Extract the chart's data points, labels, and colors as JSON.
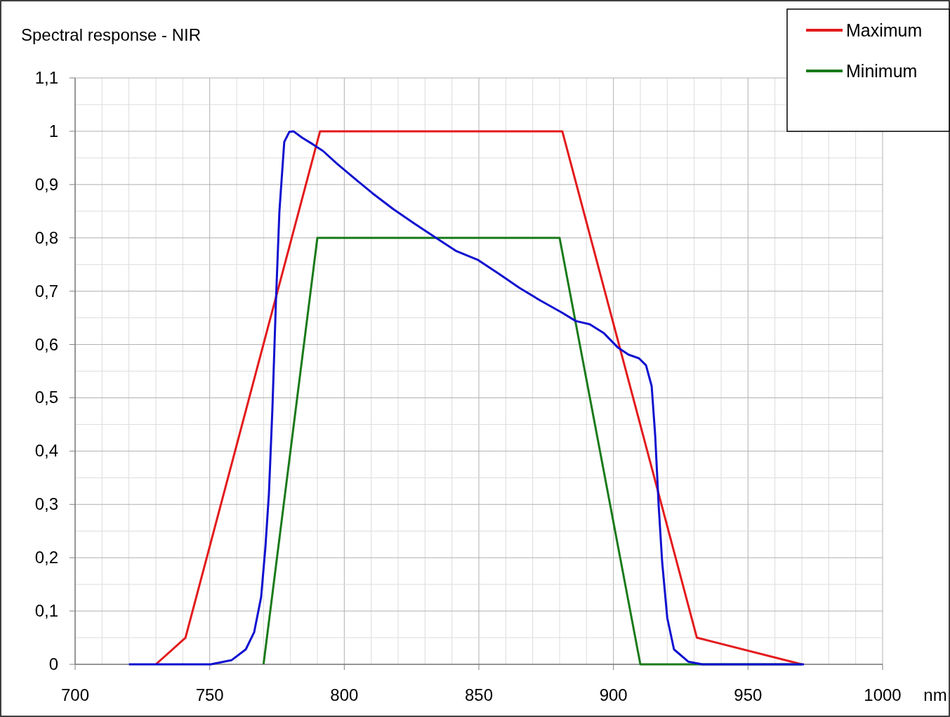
{
  "chart_data": {
    "type": "line",
    "title": "Spectral response - NIR",
    "xlabel": "nm",
    "xlim": [
      700,
      1000
    ],
    "ylim": [
      0,
      1.1
    ],
    "xticks": [
      700,
      {
        "value": 710,
        "label": null
      },
      {
        "value": 720,
        "label": null
      },
      {
        "value": 730,
        "label": null
      },
      {
        "value": 740,
        "label": null
      },
      750,
      {
        "value": 760,
        "label": null
      },
      {
        "value": 770,
        "label": null
      },
      {
        "value": 780,
        "label": null
      },
      {
        "value": 790,
        "label": null
      },
      800,
      {
        "value": 810,
        "label": null
      },
      {
        "value": 820,
        "label": null
      },
      {
        "value": 830,
        "label": null
      },
      {
        "value": 840,
        "label": null
      },
      850,
      {
        "value": 860,
        "label": null
      },
      {
        "value": 870,
        "label": null
      },
      {
        "value": 880,
        "label": null
      },
      {
        "value": 890,
        "label": null
      },
      900,
      {
        "value": 910,
        "label": null
      },
      {
        "value": 920,
        "label": null
      },
      {
        "value": 930,
        "label": null
      },
      {
        "value": 940,
        "label": null
      },
      950,
      {
        "value": 960,
        "label": null
      },
      {
        "value": 970,
        "label": null
      },
      {
        "value": 980,
        "label": null
      },
      {
        "value": 990,
        "label": null
      },
      1000
    ],
    "yticks": [
      0,
      {
        "value": 0.05,
        "label": null
      },
      {
        "value": 0.1,
        "label": "0,1"
      },
      {
        "value": 0.15,
        "label": null
      },
      {
        "value": 0.2,
        "label": "0,2"
      },
      {
        "value": 0.25,
        "label": null
      },
      {
        "value": 0.3,
        "label": "0,3"
      },
      {
        "value": 0.35,
        "label": null
      },
      {
        "value": 0.4,
        "label": "0,4"
      },
      {
        "value": 0.45,
        "label": null
      },
      {
        "value": 0.5,
        "label": "0,5"
      },
      {
        "value": 0.55,
        "label": null
      },
      {
        "value": 0.6,
        "label": "0,6"
      },
      {
        "value": 0.65,
        "label": null
      },
      {
        "value": 0.7,
        "label": "0,7"
      },
      {
        "value": 0.75,
        "label": null
      },
      {
        "value": 0.8,
        "label": "0,8"
      },
      {
        "value": 0.85,
        "label": null
      },
      {
        "value": 0.9,
        "label": "0,9"
      },
      {
        "value": 0.95,
        "label": null
      },
      1,
      {
        "value": 1.05,
        "label": null
      },
      {
        "value": 1.1,
        "label": "1,1"
      }
    ],
    "grid": true,
    "legend": "top right",
    "marker": "none",
    "line_style": "solid",
    "series": [
      {
        "name": "Maximum",
        "color": "#e31a1c",
        "x": [
          730,
          741,
          791,
          881,
          931,
          970
        ],
        "values": [
          0,
          0.05,
          1,
          1,
          0.05,
          0
        ]
      },
      {
        "name": "Minimum",
        "color": "#1a7a1a",
        "x": [
          770,
          790,
          880,
          910,
          970
        ],
        "values": [
          0,
          0.8,
          0.8,
          0,
          0
        ]
      },
      {
        "color": "#1010d0",
        "x": [
          720,
          750.4,
          758.2,
          763.4,
          766.5,
          769.1,
          770.7,
          772,
          773.3,
          774.6,
          775.9,
          777.7,
          779.6,
          781.1,
          784.3,
          788.2,
          792.1,
          797.3,
          802.5,
          810.4,
          818.2,
          826,
          833.8,
          841.7,
          849.5,
          857.3,
          865.1,
          873,
          880.8,
          886,
          891.2,
          896.5,
          901.7,
          905.6,
          909.5,
          912.1,
          914.2,
          915.5,
          916.8,
          918.1,
          920,
          922.5,
          927.8,
          933,
          970.8
        ],
        "values": [
          0,
          0,
          0.008,
          0.028,
          0.06,
          0.126,
          0.22,
          0.32,
          0.48,
          0.68,
          0.85,
          0.98,
          0.999,
          1,
          0.988,
          0.976,
          0.963,
          0.939,
          0.917,
          0.884,
          0.854,
          0.827,
          0.801,
          0.775,
          0.759,
          0.733,
          0.706,
          0.682,
          0.66,
          0.644,
          0.638,
          0.621,
          0.594,
          0.581,
          0.574,
          0.561,
          0.522,
          0.43,
          0.298,
          0.192,
          0.087,
          0.028,
          0.005,
          0,
          0
        ]
      }
    ]
  }
}
